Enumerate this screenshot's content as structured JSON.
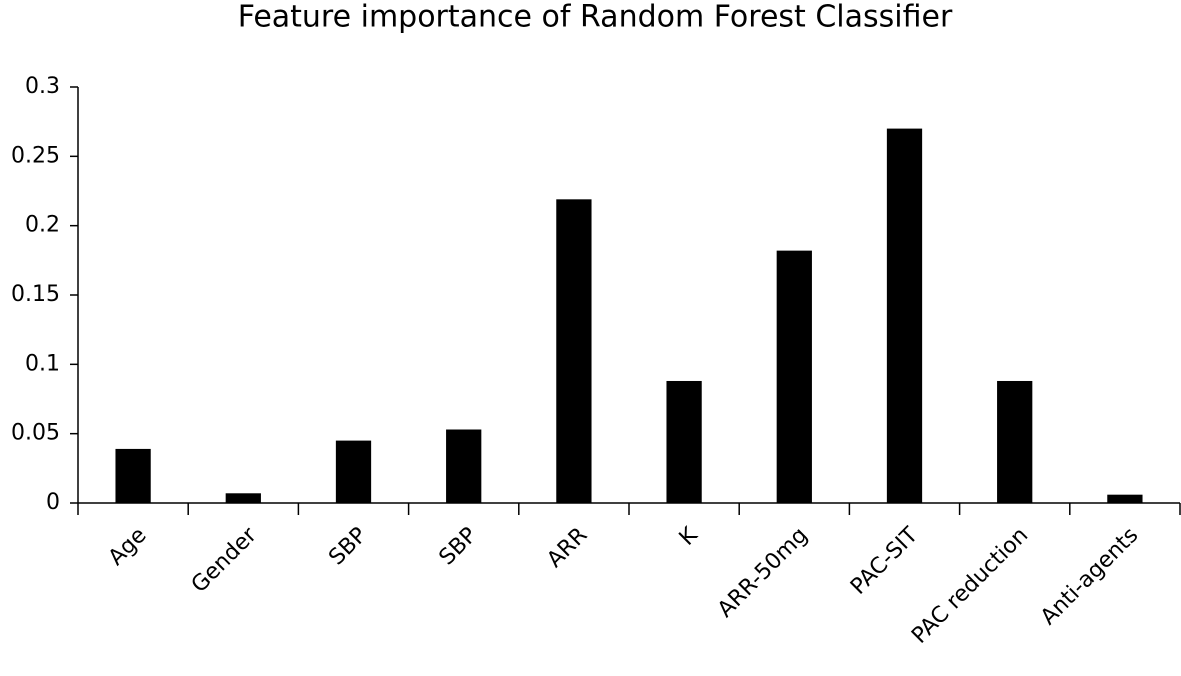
{
  "chart_data": {
    "type": "bar",
    "title": "Feature importance of Random Forest Classifier",
    "categories": [
      "Age",
      "Gender",
      "SBP",
      "SBP",
      "ARR",
      "K",
      "ARR-50mg",
      "PAC-SIT",
      "PAC reduction",
      "Anti-agents"
    ],
    "values": [
      0.039,
      0.007,
      0.045,
      0.053,
      0.219,
      0.088,
      0.182,
      0.27,
      0.088,
      0.006
    ],
    "color": "#000000",
    "ylim": [
      0,
      0.3
    ],
    "yticks": [
      0,
      0.05,
      0.1,
      0.15,
      0.2,
      0.25,
      0.3
    ],
    "grid": false
  }
}
